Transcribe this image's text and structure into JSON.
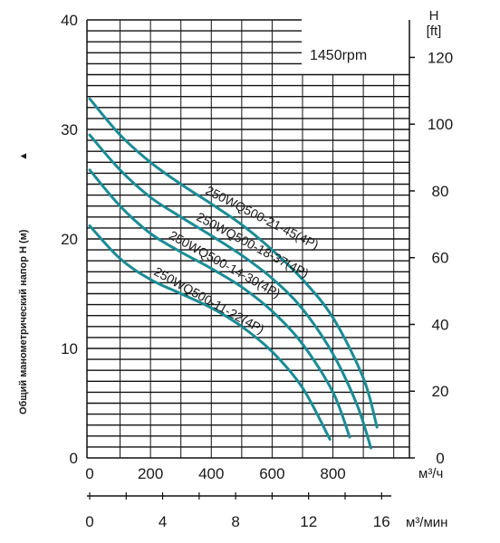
{
  "chart_data": {
    "type": "line",
    "speed_label": "1450rpm",
    "ylabel": "Общий манометрический напор H (м)",
    "ylabel_arrow": "▲",
    "y_right_label_top": "H",
    "y_right_label_unit": "[ft]",
    "x_primary_unit": "м³/ч",
    "x_secondary_unit": "м³/мин",
    "xlim": [
      0,
      950
    ],
    "ylim": [
      0,
      40
    ],
    "y_left_ticks": [
      "0",
      "10",
      "20",
      "30",
      "40"
    ],
    "y_right_ticks": [
      "0",
      "20",
      "40",
      "60",
      "80",
      "100",
      "120"
    ],
    "x_primary_ticks": [
      "0",
      "200",
      "400",
      "600",
      "800"
    ],
    "x_secondary_ticks": [
      "0",
      "4",
      "8",
      "12",
      "16"
    ],
    "series": [
      {
        "name": "250WQ500-21-45(4P)",
        "x": [
          0,
          100,
          200,
          300,
          400,
          500,
          600,
          700,
          800,
          900,
          945
        ],
        "y": [
          32.8,
          29.5,
          27.0,
          25.0,
          23.2,
          21.3,
          19.0,
          16.3,
          12.8,
          7.3,
          2.8
        ]
      },
      {
        "name": "250WQ500-18-37(4P)",
        "x": [
          0,
          100,
          200,
          300,
          400,
          500,
          600,
          700,
          800,
          880,
          925
        ],
        "y": [
          29.5,
          26.3,
          23.8,
          22.0,
          20.3,
          18.5,
          16.4,
          13.6,
          9.5,
          4.8,
          0.9
        ]
      },
      {
        "name": "250WQ500-14-30(4P)",
        "x": [
          0,
          100,
          200,
          300,
          400,
          500,
          600,
          700,
          800,
          855
        ],
        "y": [
          26.3,
          23.0,
          20.5,
          18.8,
          17.3,
          15.6,
          13.4,
          10.4,
          6.0,
          1.9
        ]
      },
      {
        "name": "250WQ500-11-22(4P)",
        "x": [
          0,
          100,
          200,
          300,
          400,
          500,
          600,
          700,
          790
        ],
        "y": [
          21.2,
          18.2,
          16.3,
          15.0,
          13.7,
          12.0,
          9.7,
          6.4,
          1.7
        ]
      }
    ],
    "line_color": "#1a8c96",
    "grid_color": "#111111",
    "ft_per_m": 3.2808,
    "m3h_per_m3min": 60
  }
}
